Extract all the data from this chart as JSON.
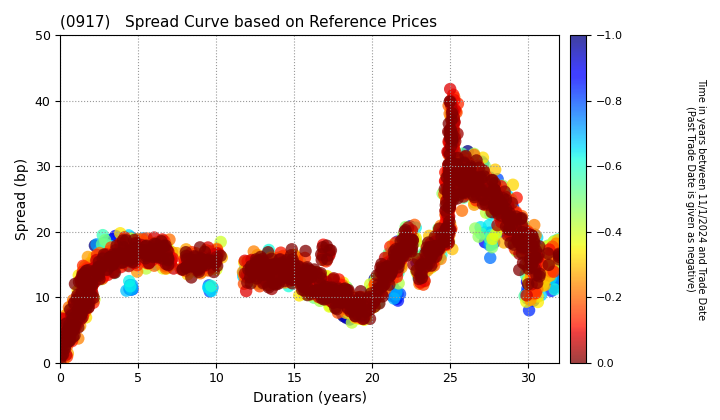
{
  "title": "(0917)   Spread Curve based on Reference Prices",
  "xlabel": "Duration (years)",
  "ylabel": "Spread (bp)",
  "colorbar_label": "Time in years between 11/1/2024 and Trade Date\n(Past Trade Date is given as negative)",
  "xlim": [
    0,
    32
  ],
  "ylim": [
    0,
    50
  ],
  "xticks": [
    0,
    5,
    10,
    15,
    20,
    25,
    30
  ],
  "yticks": [
    0,
    10,
    20,
    30,
    40,
    50
  ],
  "cmap": "jet",
  "clim": [
    -1.0,
    0.0
  ],
  "cticks": [
    0.0,
    -0.2,
    -0.4,
    -0.6,
    -0.8,
    -1.0
  ],
  "background_color": "#ffffff",
  "grid_color": "#999999",
  "dot_size": 80,
  "dot_alpha": 0.75
}
